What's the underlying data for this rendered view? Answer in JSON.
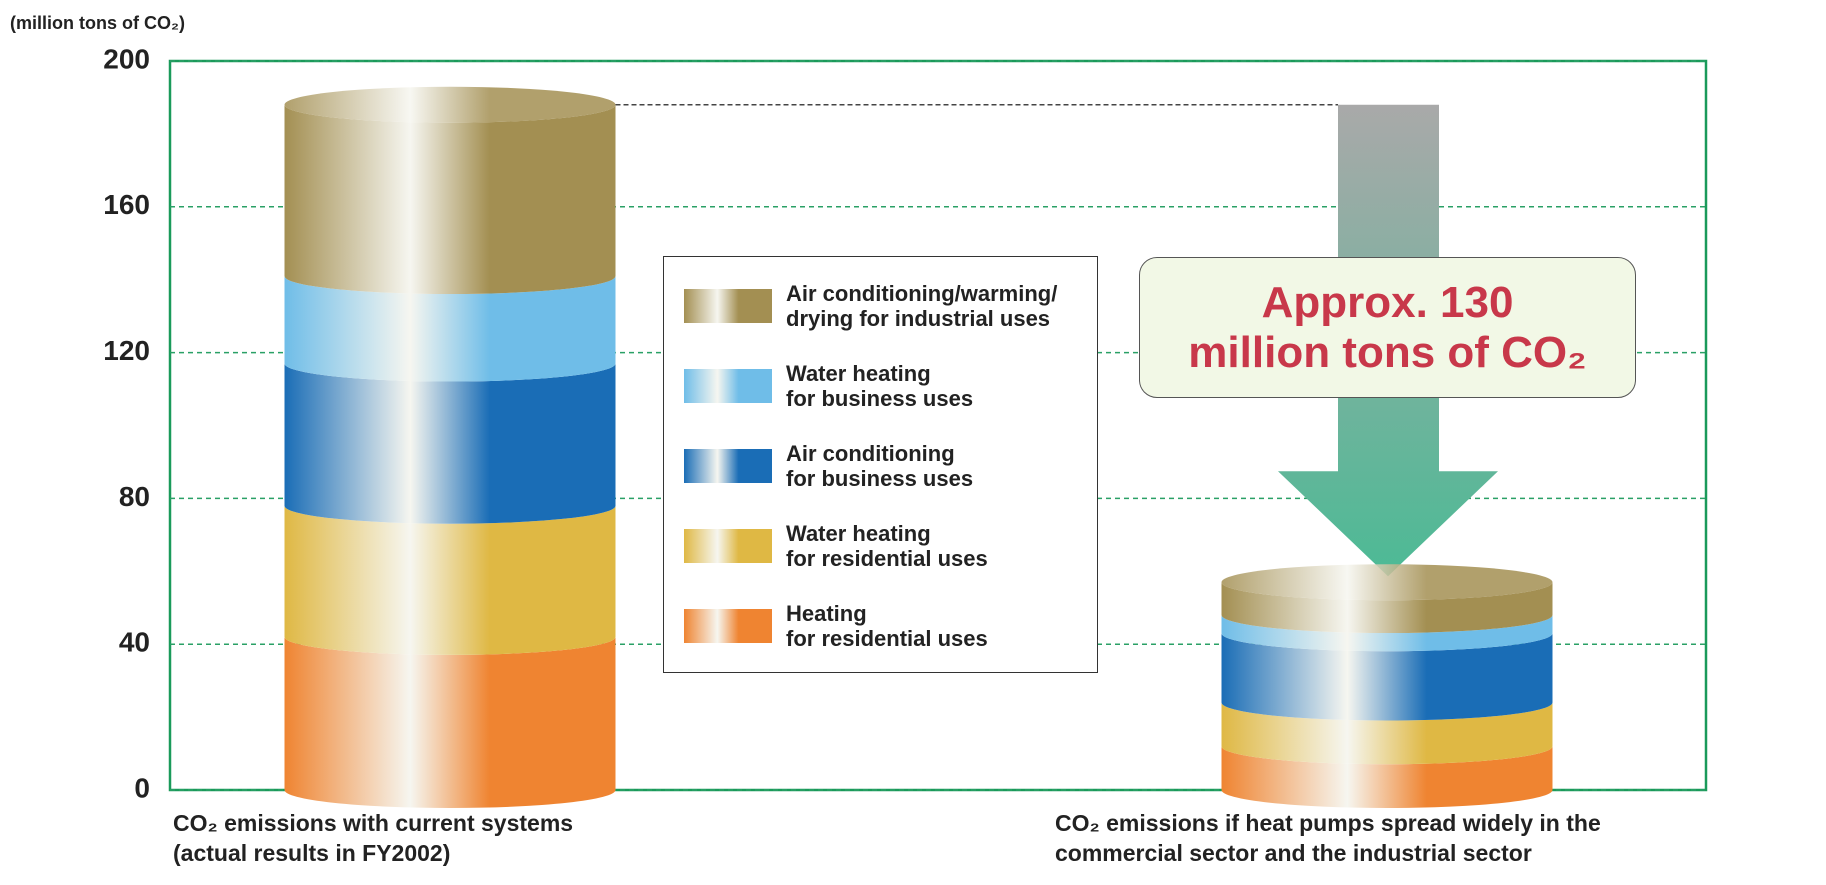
{
  "chart_data": {
    "type": "bar",
    "stacked": true,
    "y_label": "(million tons of CO₂)",
    "categories": [
      "CO₂ emissions with current systems\n(actual results in FY2002)",
      "CO₂ emissions if heat pumps spread widely in the\ncommercial sector and the industrial sector"
    ],
    "series": [
      {
        "name": "Heating\nfor residential uses",
        "color": "#ef8431",
        "values": [
          42,
          12
        ]
      },
      {
        "name": "Water heating\nfor residential uses",
        "color": "#dfb844",
        "values": [
          36,
          12
        ]
      },
      {
        "name": "Air conditioning\nfor business uses",
        "color": "#1a6db6",
        "values": [
          39,
          19
        ]
      },
      {
        "name": "Water heating\nfor business uses",
        "color": "#6fbde8",
        "values": [
          24,
          5
        ]
      },
      {
        "name": "Air conditioning/warming/\ndrying for industrial uses",
        "color": "#a38f52",
        "values": [
          47,
          9
        ]
      }
    ],
    "annotation": "Approx. 130\nmillion tons of CO₂",
    "ylim": [
      0,
      200
    ],
    "yticks": [
      0,
      40,
      80,
      120,
      160,
      200
    ],
    "grid": true
  }
}
